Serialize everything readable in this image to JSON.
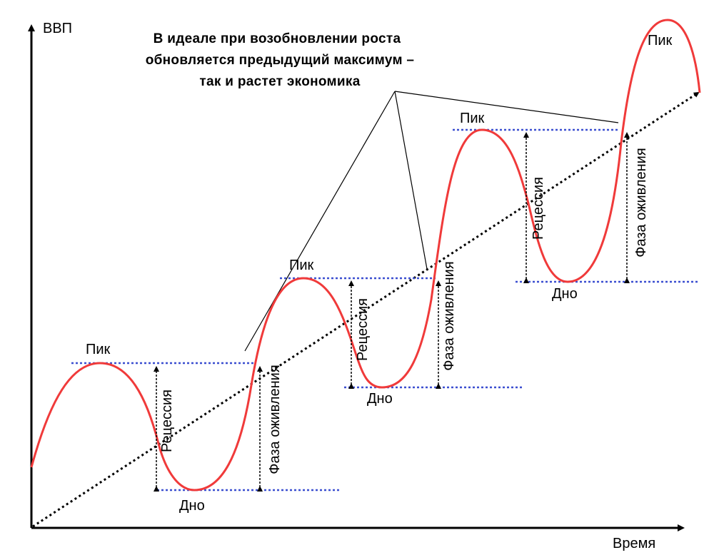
{
  "axes": {
    "y_label": "ВВП",
    "x_label": "Время"
  },
  "annotation": {
    "lines": [
      "В идеале при возобновлении роста",
      "обновляется предыдущий максимум –",
      "так и растет экономика"
    ]
  },
  "labels": {
    "peak": "Пик",
    "trough": "Дно",
    "recession": "Рецессия",
    "recovery": "Фаза оживления"
  },
  "colors": {
    "curve": "#f03a3a",
    "guide": "#3b4fd0",
    "trend": "#000000",
    "axis": "#000000"
  }
}
